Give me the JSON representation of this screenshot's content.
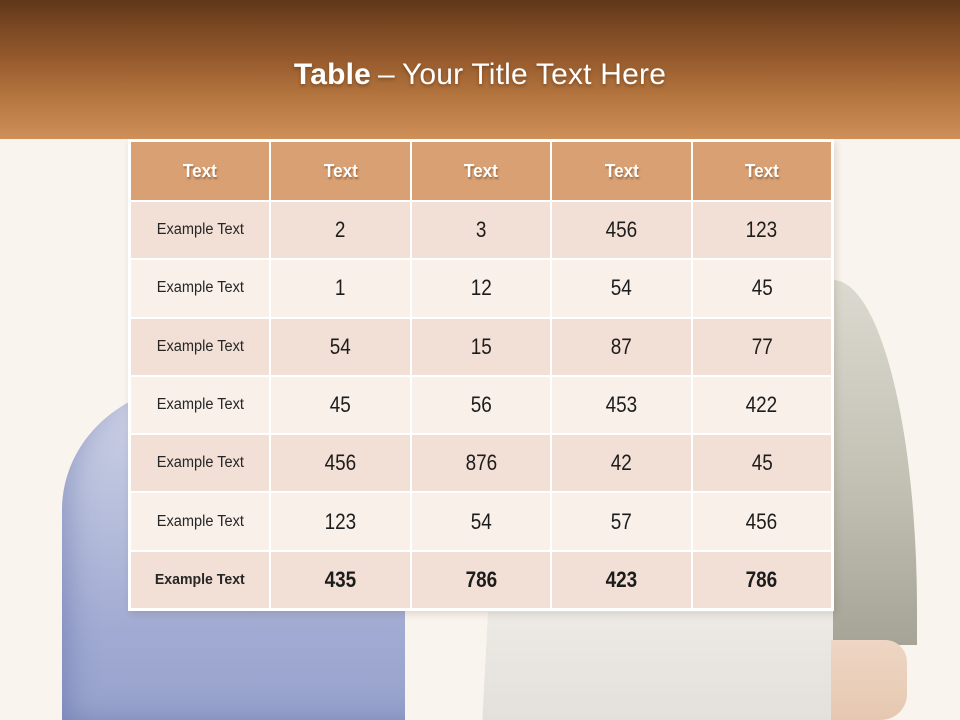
{
  "slide": {
    "title": {
      "keyword": "Table",
      "separator": "–",
      "text": "Your Title Text Here"
    }
  },
  "table": {
    "headers": [
      "Text",
      "Text",
      "Text",
      "Text",
      "Text"
    ],
    "rows": [
      {
        "label": "Example Text",
        "values": [
          "2",
          "3",
          "456",
          "123"
        ],
        "emphasis": false
      },
      {
        "label": "Example Text",
        "values": [
          "1",
          "12",
          "54",
          "45"
        ],
        "emphasis": false
      },
      {
        "label": "Example Text",
        "values": [
          "54",
          "15",
          "87",
          "77"
        ],
        "emphasis": false
      },
      {
        "label": "Example Text",
        "values": [
          "45",
          "56",
          "453",
          "422"
        ],
        "emphasis": false
      },
      {
        "label": "Example Text",
        "values": [
          "456",
          "876",
          "42",
          "45"
        ],
        "emphasis": false
      },
      {
        "label": "Example Text",
        "values": [
          "123",
          "54",
          "57",
          "456"
        ],
        "emphasis": false
      },
      {
        "label": "Example Text",
        "values": [
          "435",
          "786",
          "423",
          "786"
        ],
        "emphasis": true
      }
    ]
  },
  "background": {
    "left_figure": "person-in-periwinkle-blue-shirt",
    "right_figure": "person-in-light-gray-tshirt-with-olive-sleeve"
  },
  "colors": {
    "banner_top": "#5f371a",
    "banner_bottom": "#cf8f58",
    "header_bg": "#d9a173",
    "row_odd_bg": "#f2dfd5",
    "row_even_bg": "#f9f0ea",
    "page_bg": "#faf4ee",
    "title_text": "#ffffff",
    "cell_text": "#262626"
  }
}
